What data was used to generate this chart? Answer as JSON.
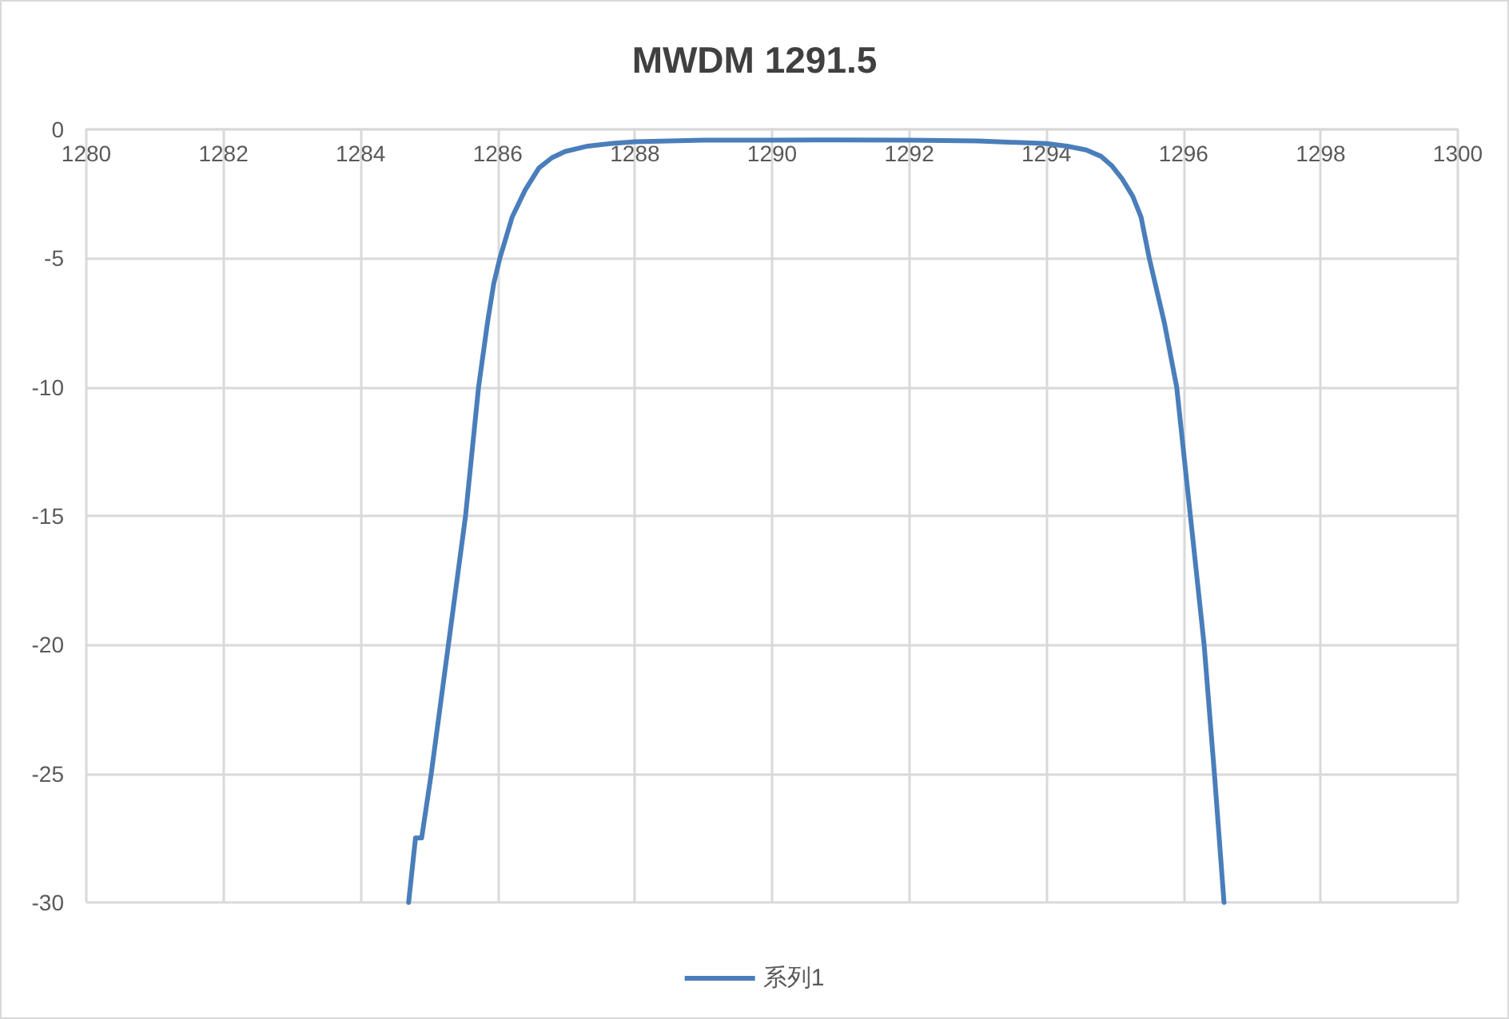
{
  "chart_data": {
    "type": "line",
    "title": "MWDM 1291.5",
    "x": [
      1284.7,
      1284.8,
      1284.89,
      1285.03,
      1285.28,
      1285.53,
      1285.72,
      1285.85,
      1285.94,
      1286.03,
      1286.21,
      1286.4,
      1286.6,
      1286.79,
      1286.98,
      1287.29,
      1287.68,
      1288.0,
      1289.0,
      1290.0,
      1291.0,
      1292.0,
      1293.0,
      1293.5,
      1294.0,
      1294.3,
      1294.58,
      1294.8,
      1294.95,
      1295.1,
      1295.26,
      1295.38,
      1295.5,
      1295.72,
      1295.9,
      1296.1,
      1296.3,
      1296.45,
      1296.59
    ],
    "series": [
      {
        "name": "系列1",
        "color": "#4a7ebb",
        "values": [
          -30,
          -27.5,
          -27.5,
          -25,
          -20,
          -15,
          -10,
          -7.5,
          -6,
          -5,
          -3.4,
          -2.35,
          -1.5,
          -1.1,
          -0.86,
          -0.66,
          -0.54,
          -0.48,
          -0.42,
          -0.42,
          -0.41,
          -0.42,
          -0.45,
          -0.5,
          -0.55,
          -0.65,
          -0.8,
          -1.05,
          -1.4,
          -1.9,
          -2.6,
          -3.4,
          -5,
          -7.5,
          -10,
          -15,
          -20,
          -25,
          -30
        ]
      }
    ],
    "xlim": [
      1280,
      1300
    ],
    "xticks": [
      1280,
      1282,
      1284,
      1286,
      1288,
      1290,
      1292,
      1294,
      1296,
      1298,
      1300
    ],
    "ylim": [
      -30,
      0
    ],
    "yticks": [
      -30,
      -25,
      -20,
      -15,
      -10,
      -5,
      0
    ],
    "grid": true,
    "legend": "bottom",
    "marker": "none",
    "line_style": "solid"
  }
}
